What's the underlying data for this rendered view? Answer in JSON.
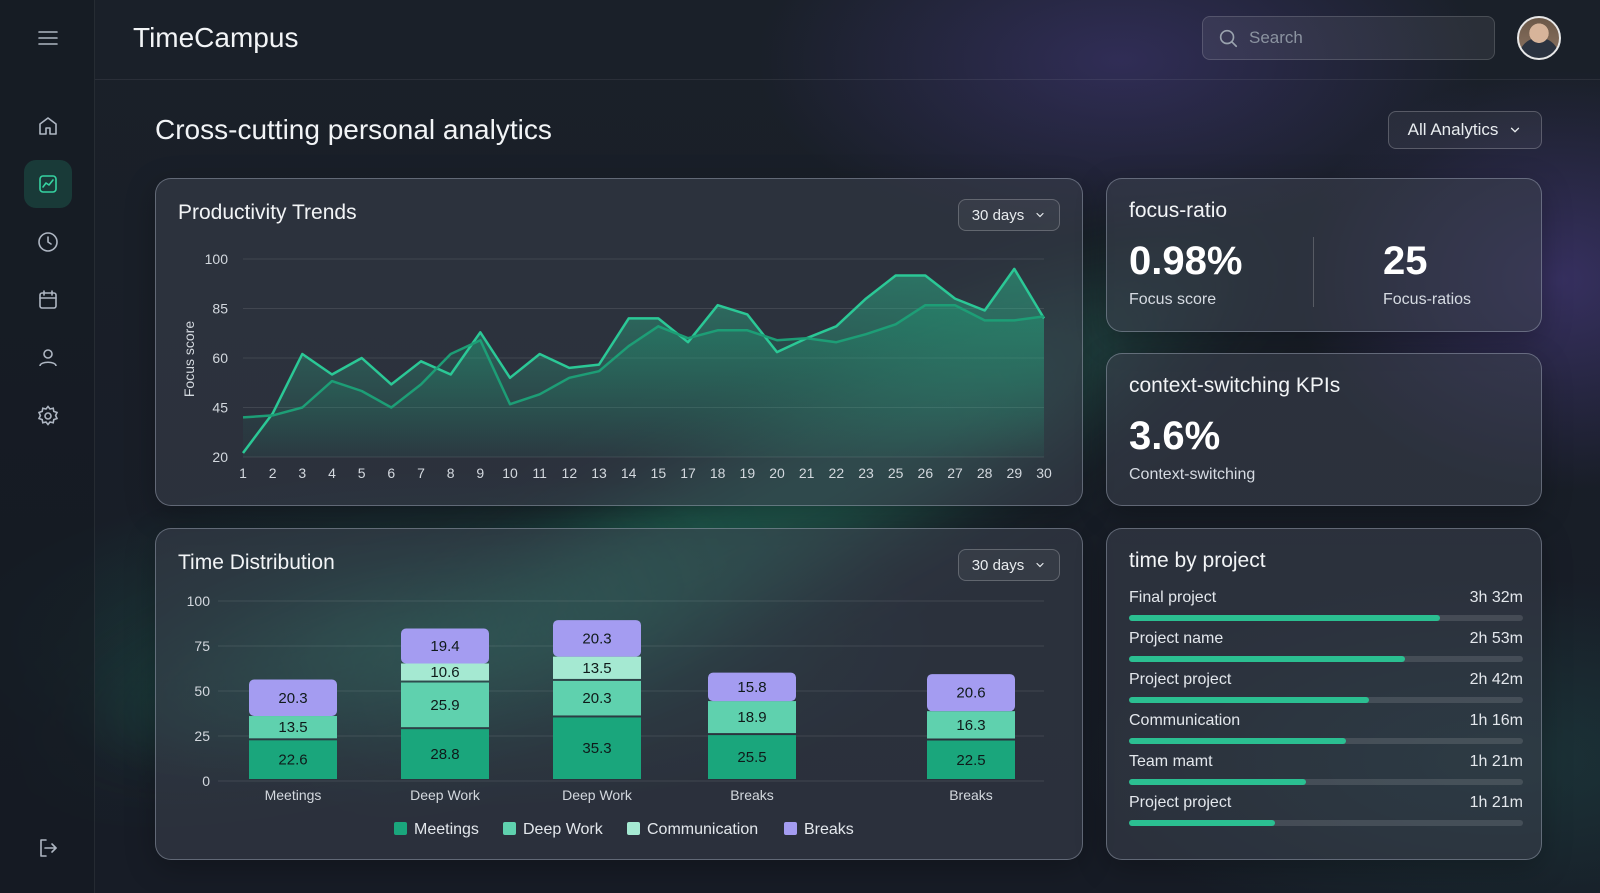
{
  "app": {
    "title": "TimeCampus"
  },
  "search": {
    "placeholder": "Search"
  },
  "sidebar": {
    "items": [
      {
        "icon": "menu-icon"
      },
      {
        "icon": "home-icon"
      },
      {
        "icon": "analytics-icon",
        "active": true
      },
      {
        "icon": "clock-icon"
      },
      {
        "icon": "calendar-icon"
      },
      {
        "icon": "user-icon"
      },
      {
        "icon": "settings-icon"
      },
      {
        "icon": "logout-icon"
      }
    ]
  },
  "header": {
    "title": "Cross-cutting personal analytics",
    "filter_label": "All Analytics"
  },
  "productivity": {
    "title": "Productivity Trends",
    "range_label": "30 days",
    "chart_data": {
      "type": "line",
      "title": "Productivity Trends",
      "ylabel": "Focus score",
      "xlabel": "",
      "y_ticks": [
        100,
        85,
        60,
        45,
        20
      ],
      "x": [
        1,
        2,
        3,
        4,
        5,
        6,
        7,
        8,
        9,
        10,
        11,
        12,
        13,
        14,
        15,
        17,
        18,
        19,
        20,
        21,
        22,
        23,
        25,
        26,
        27,
        28,
        29,
        30
      ],
      "series": [
        {
          "values": [
            22,
            42,
            62,
            55,
            60,
            52,
            59,
            55,
            73,
            54,
            62,
            57,
            58,
            80,
            80,
            68,
            86,
            82,
            63,
            70,
            76,
            88,
            95,
            95,
            88,
            84,
            97,
            80
          ],
          "color": "#2bc896"
        },
        {
          "values": [
            40,
            41,
            45,
            53,
            50,
            45,
            52,
            62,
            69,
            46,
            49,
            54,
            56,
            66,
            76,
            70,
            74,
            74,
            69,
            70,
            68,
            72,
            77,
            86,
            86,
            79,
            79,
            81
          ],
          "color": "#1d9e76"
        }
      ]
    }
  },
  "distribution": {
    "title": "Time Distribution",
    "range_label": "30 days",
    "chart_data": {
      "type": "bar",
      "stacked": true,
      "title": "Time Distribution",
      "y_ticks": [
        100,
        75,
        50,
        25,
        0
      ],
      "categories": [
        "Meetings",
        "Deep Work",
        "Deep Work",
        "Breaks",
        "Breaks"
      ],
      "series": [
        {
          "name": "Meetings",
          "values": [
            22.6,
            28.8,
            35.3,
            25.5,
            22.5
          ],
          "color": "#1aa67c"
        },
        {
          "name": "Deep Work",
          "values": [
            13.5,
            25.9,
            20.3,
            18.9,
            16.3
          ],
          "color": "#5fd1ae"
        },
        {
          "name": "Communication",
          "values": [
            null,
            10.6,
            13.5,
            null,
            null
          ],
          "color": "#a5e9d2"
        },
        {
          "name": "Breaks",
          "values": [
            20.3,
            19.4,
            20.3,
            15.8,
            20.6
          ],
          "color": "#a49cf1"
        }
      ],
      "legend": "bottom"
    }
  },
  "focus": {
    "title": "focus-ratio",
    "value1": "0.98%",
    "label1": "Focus score",
    "value2": "25",
    "label2": "Focus-ratios"
  },
  "context": {
    "title": "context-switching KPIs",
    "value": "3.6%",
    "label": "Context-switching"
  },
  "projects": {
    "title": "time by project",
    "items": [
      {
        "name": "Final project",
        "time": "3h 32m",
        "fraction": 0.79
      },
      {
        "name": "Project name",
        "time": "2h 53m",
        "fraction": 0.7
      },
      {
        "name": "Project project",
        "time": "2h 42m",
        "fraction": 0.61
      },
      {
        "name": "Communication",
        "time": "1h 16m",
        "fraction": 0.55
      },
      {
        "name": "Team mamt",
        "time": "1h 21m",
        "fraction": 0.45
      },
      {
        "name": "Project project",
        "time": "1h 21m",
        "fraction": 0.37
      }
    ]
  }
}
